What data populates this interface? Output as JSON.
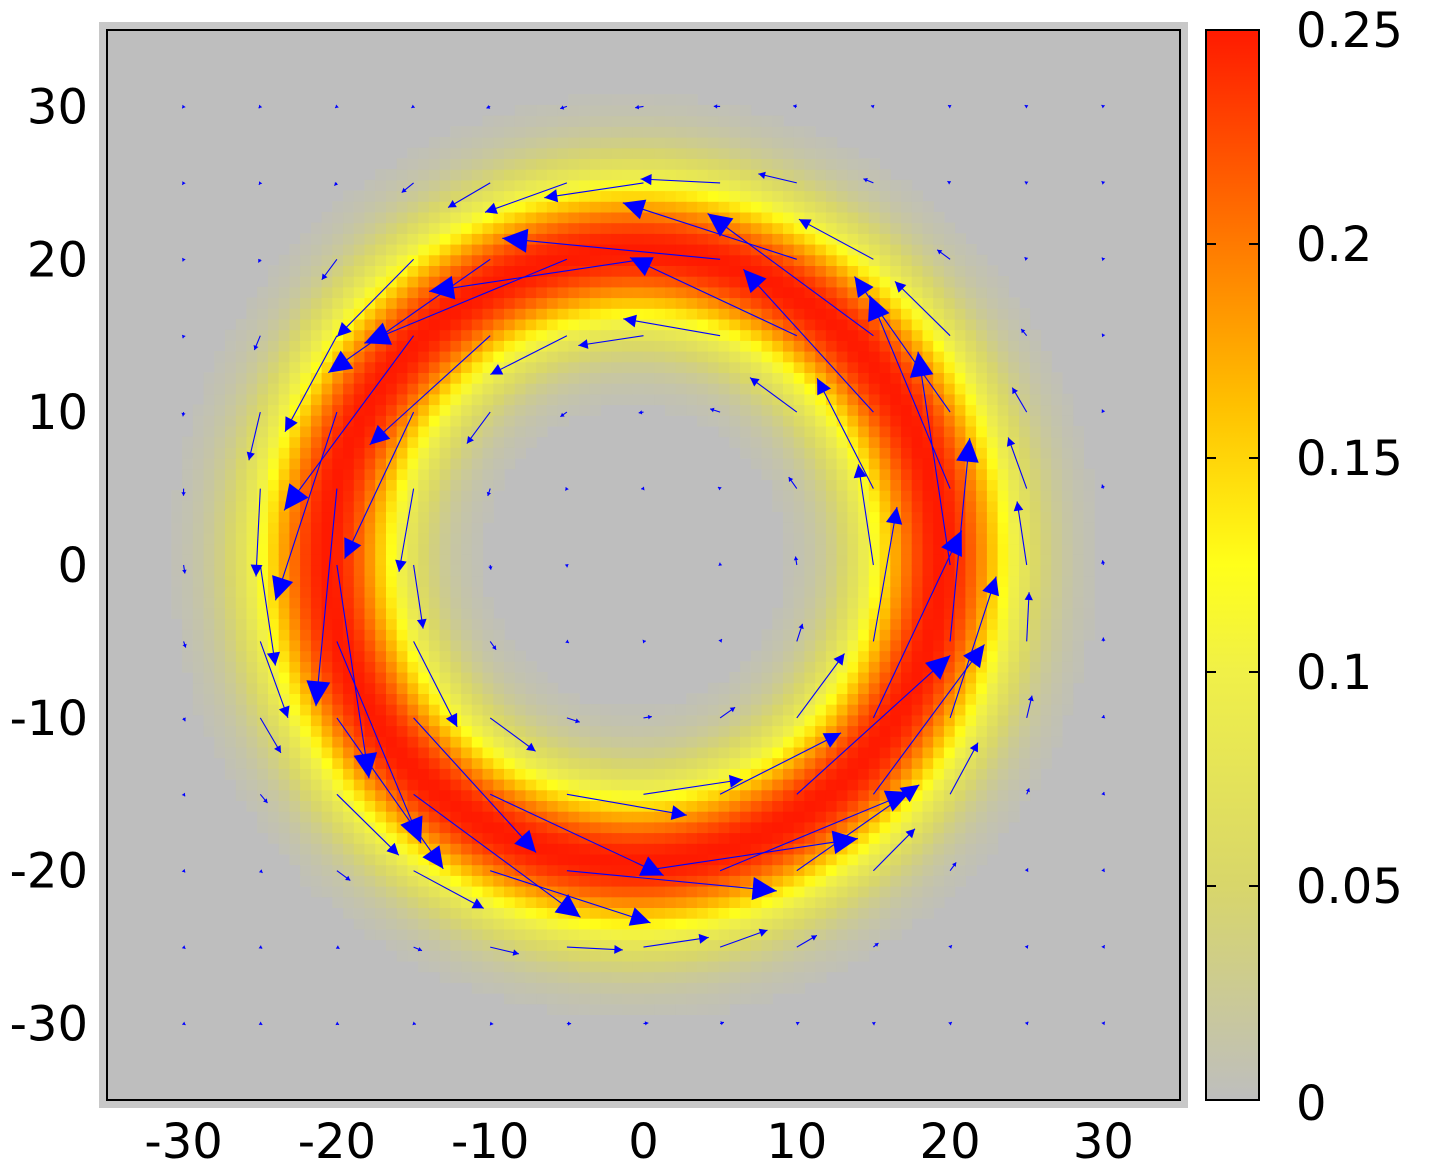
{
  "chart_data": {
    "type": "heatmap",
    "title": "",
    "xlabel": "",
    "ylabel": "",
    "xlim": [
      -35,
      35
    ],
    "ylim": [
      -35,
      35
    ],
    "x_ticks": [
      "-30",
      "-20",
      "-10",
      "0",
      "10",
      "20",
      "30"
    ],
    "y_ticks": [
      "30",
      "20",
      "10",
      "0",
      "-10",
      "-20",
      "-30"
    ],
    "heatmap": {
      "description_of_field": "ring-shaped density, peak on a circle",
      "ring_center": [
        0,
        0
      ],
      "ring_radius": 20,
      "ring_width": 5,
      "peak_value": 0.25
    },
    "vector_field": {
      "type": "quiver",
      "grid_spacing": 5,
      "rotation": "counter-clockwise",
      "color": "#0000ff"
    },
    "colorbar": {
      "min": 0,
      "max": 0.25,
      "ticks": [
        "0.25",
        "0.2",
        "0.15",
        "0.1",
        "0.05",
        "0"
      ],
      "colors": [
        "#bebebe",
        "#e8e84a",
        "#ffff1a",
        "#ffb400",
        "#ff5a00",
        "#ff1a00"
      ]
    }
  }
}
